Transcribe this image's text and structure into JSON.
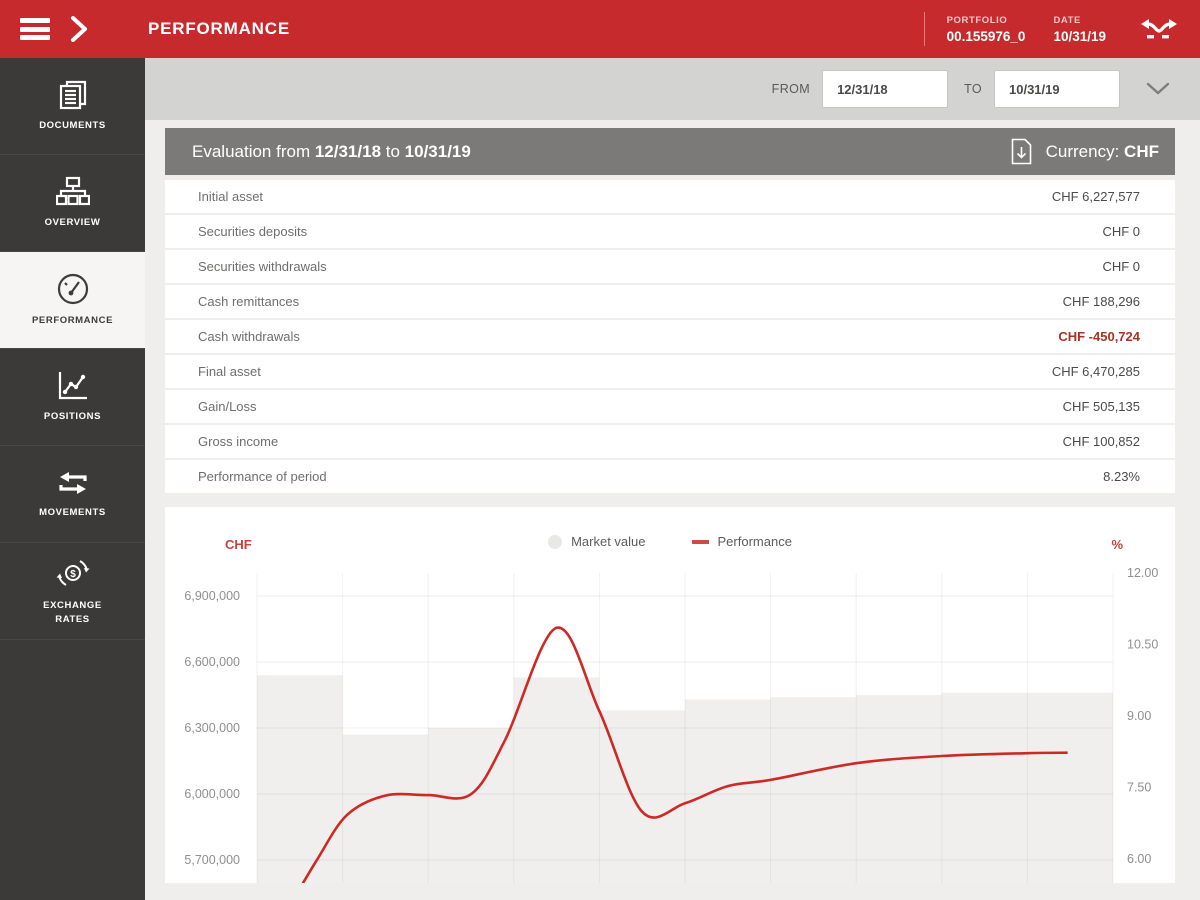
{
  "topbar": {
    "title": "PERFORMANCE",
    "portfolio_label": "PORTFOLIO",
    "portfolio_value": "00.155976_0",
    "date_label": "DATE",
    "date_value": "10/31/19"
  },
  "sidebar": {
    "items": [
      {
        "label": "DOCUMENTS",
        "icon": "documents-icon",
        "active": false
      },
      {
        "label": "OVERVIEW",
        "icon": "overview-sitemap-icon",
        "active": false
      },
      {
        "label": "PERFORMANCE",
        "icon": "performance-gauge-icon",
        "active": true
      },
      {
        "label": "POSITIONS",
        "icon": "positions-chart-icon",
        "active": false
      },
      {
        "label": "MOVEMENTS",
        "icon": "movements-arrows-icon",
        "active": false
      },
      {
        "label": "EXCHANGE RATES",
        "icon": "exchange-rates-icon",
        "active": false
      }
    ]
  },
  "filterbar": {
    "from_label": "FROM",
    "from_value": "12/31/18",
    "to_label": "TO",
    "to_value": "10/31/19"
  },
  "evaluation": {
    "title_prefix": "Evaluation from ",
    "title_from": "12/31/18",
    "title_mid": " to ",
    "title_to": "10/31/19",
    "currency_label": "Currency: ",
    "currency_value": "CHF"
  },
  "table": {
    "rows": [
      {
        "label": "Initial asset",
        "value": "CHF 6,227,577",
        "negative": false
      },
      {
        "label": "Securities deposits",
        "value": "CHF 0",
        "negative": false
      },
      {
        "label": "Securities withdrawals",
        "value": "CHF 0",
        "negative": false
      },
      {
        "label": "Cash remittances",
        "value": "CHF 188,296",
        "negative": false
      },
      {
        "label": "Cash withdrawals",
        "value": "CHF -450,724",
        "negative": true
      },
      {
        "label": "Final asset",
        "value": "CHF 6,470,285",
        "negative": false
      },
      {
        "label": "Gain/Loss",
        "value": "CHF 505,135",
        "negative": false
      },
      {
        "label": "Gross income",
        "value": "CHF 100,852",
        "negative": false
      },
      {
        "label": "Performance of period",
        "value": "8.23%",
        "negative": false
      }
    ]
  },
  "chart_data": {
    "type": "combo",
    "title": "",
    "x_axis": {
      "months_shown": 10,
      "labels_visible": false
    },
    "left_axis": {
      "label": "CHF",
      "ticks": [
        6900000,
        6600000,
        6300000,
        6000000,
        5700000
      ],
      "tick_labels": [
        "6,900,000",
        "6,600,000",
        "6,300,000",
        "6,000,000",
        "5,700,000"
      ],
      "range_top": 6900000,
      "step": 300000
    },
    "right_axis": {
      "label": "%",
      "ticks": [
        12.0,
        10.5,
        9.0,
        7.5,
        6.0
      ],
      "tick_labels": [
        "12.00",
        "10.50",
        "9.00",
        "7.50",
        "6.00"
      ],
      "range": [
        6.0,
        12.0
      ]
    },
    "series": [
      {
        "name": "Market value",
        "type": "step-area",
        "axis": "left",
        "color": "#f0efee",
        "values": [
          6540000,
          6270000,
          6300000,
          6530000,
          6380000,
          6430000,
          6440000,
          6450000,
          6460000,
          6460000
        ]
      },
      {
        "name": "Performance",
        "type": "line",
        "axis": "right",
        "color": "#cc2a25",
        "points": [
          [
            0.39,
            5.04
          ],
          [
            0.7,
            5.98
          ],
          [
            1.05,
            6.92
          ],
          [
            1.5,
            7.33
          ],
          [
            2.0,
            7.34
          ],
          [
            2.5,
            7.36
          ],
          [
            2.9,
            8.5
          ],
          [
            3.5,
            10.85
          ],
          [
            4.0,
            9.1
          ],
          [
            4.5,
            6.99
          ],
          [
            5.0,
            7.17
          ],
          [
            5.5,
            7.53
          ],
          [
            6.0,
            7.66
          ],
          [
            7.0,
            8.01
          ],
          [
            8.0,
            8.16
          ],
          [
            9.0,
            8.22
          ],
          [
            9.47,
            8.23
          ]
        ],
        "final_value_pct": 8.23
      }
    ],
    "grid": true,
    "legend_position": "top-center"
  }
}
